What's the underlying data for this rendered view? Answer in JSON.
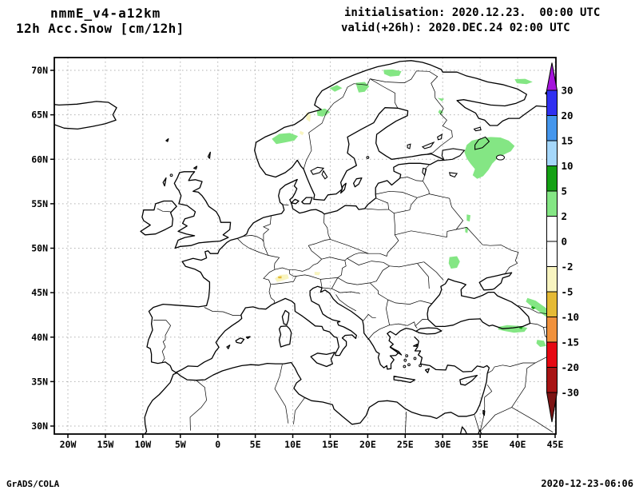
{
  "header": {
    "model": "nmmE_v4-a12km",
    "field": "12h Acc.Snow [cm/12h]",
    "initialisation": "initialisation: 2020.12.23.  00:00 UTC",
    "valid": "valid(+26h): 2020.DEC.24 02:00 UTC"
  },
  "footer": {
    "credit": "GrADS/COLA",
    "generated": "2020-12-23-06:06"
  },
  "map": {
    "projection": "latlon",
    "lon_ticks": [
      "20W",
      "15W",
      "10W",
      "5W",
      "0",
      "5E",
      "10E",
      "15E",
      "20E",
      "25E",
      "30E",
      "35E",
      "40E",
      "45E"
    ],
    "lon_values": [
      -20,
      -15,
      -10,
      -5,
      0,
      5,
      10,
      15,
      20,
      25,
      30,
      35,
      40,
      45
    ],
    "lat_ticks": [
      "70N",
      "65N",
      "60N",
      "55N",
      "50N",
      "45N",
      "40N",
      "35N",
      "30N"
    ],
    "lat_values": [
      70,
      65,
      60,
      55,
      50,
      45,
      40,
      35,
      30
    ],
    "grid": "dotted"
  },
  "colorbar": {
    "unit": "cm/12h",
    "levels": [
      "30",
      "20",
      "15",
      "10",
      "5",
      "2",
      "0",
      "-2",
      "-5",
      "-10",
      "-15",
      "-20",
      "-30"
    ],
    "segment_colors": [
      "#3030f0",
      "#4596ec",
      "#a5d7fa",
      "#14a014",
      "#84e684",
      "#ffffff",
      "#ffffff",
      "#f8f4c0",
      "#e5ba35",
      "#f0913c",
      "#e60812",
      "#a81414"
    ],
    "above_color": "#a514dc",
    "below_color": "#7d1414",
    "band_colors": {
      "2": "#84e684",
      "5": "#14a014",
      "-2": "#f8f4c0",
      "-5": "#e5ba35"
    }
  },
  "snow_patches": [
    {
      "level": "2",
      "region": "south-norway-mountains",
      "pts": [
        [
          7.2,
          62.3
        ],
        [
          8.2,
          62.85
        ],
        [
          9.6,
          62.95
        ],
        [
          10.7,
          62.6
        ],
        [
          10.2,
          62.1
        ],
        [
          9.0,
          61.9
        ],
        [
          7.8,
          61.7
        ],
        [
          7.2,
          62.3
        ]
      ]
    },
    {
      "level": "2",
      "region": "trondelag",
      "pts": [
        [
          13.2,
          65.5
        ],
        [
          14.3,
          65.7
        ],
        [
          15.0,
          65.3
        ],
        [
          14.0,
          64.8
        ],
        [
          13.3,
          64.9
        ],
        [
          13.2,
          65.5
        ]
      ]
    },
    {
      "level": "2",
      "region": "nordland-coast",
      "pts": [
        [
          14.9,
          68.0
        ],
        [
          15.9,
          68.35
        ],
        [
          16.6,
          68.0
        ],
        [
          15.6,
          67.6
        ],
        [
          14.9,
          68.0
        ]
      ]
    },
    {
      "level": "2",
      "region": "north-sweden",
      "pts": [
        [
          18.4,
          68.6
        ],
        [
          19.6,
          68.7
        ],
        [
          20.2,
          68.2
        ],
        [
          19.6,
          67.6
        ],
        [
          18.8,
          67.5
        ],
        [
          18.6,
          68.0
        ],
        [
          18.4,
          68.6
        ]
      ]
    },
    {
      "level": "2",
      "region": "finnmark",
      "pts": [
        [
          22.1,
          70.05
        ],
        [
          23.3,
          70.1
        ],
        [
          24.5,
          69.9
        ],
        [
          24.2,
          69.4
        ],
        [
          23.0,
          69.3
        ],
        [
          22.2,
          69.6
        ],
        [
          22.1,
          70.05
        ]
      ]
    },
    {
      "level": "2",
      "region": "kola",
      "pts": [
        [
          39.6,
          69.0
        ],
        [
          41.0,
          69.05
        ],
        [
          42.0,
          68.7
        ],
        [
          41.2,
          68.45
        ],
        [
          39.9,
          68.55
        ],
        [
          39.6,
          69.0
        ]
      ]
    },
    {
      "level": "2",
      "region": "kuusamo",
      "pts": [
        [
          29.3,
          66.9
        ],
        [
          30.2,
          66.8
        ],
        [
          29.9,
          66.5
        ],
        [
          29.3,
          66.9
        ]
      ]
    },
    {
      "level": "2",
      "region": "kainuu",
      "pts": [
        [
          29.6,
          65.6
        ],
        [
          30.1,
          65.3
        ],
        [
          29.7,
          65.0
        ],
        [
          29.4,
          65.3
        ],
        [
          29.6,
          65.6
        ]
      ]
    },
    {
      "level": "2",
      "region": "nw-russia-large",
      "pts": [
        [
          33.2,
          61.6
        ],
        [
          33.9,
          62.1
        ],
        [
          35.1,
          62.35
        ],
        [
          36.4,
          62.5
        ],
        [
          37.7,
          62.45
        ],
        [
          38.8,
          62.1
        ],
        [
          39.6,
          61.5
        ],
        [
          39.1,
          60.9
        ],
        [
          38.1,
          60.5
        ],
        [
          37.3,
          60.1
        ],
        [
          36.6,
          59.5
        ],
        [
          36.1,
          58.8
        ],
        [
          35.4,
          58.1
        ],
        [
          34.6,
          57.8
        ],
        [
          34.0,
          58.2
        ],
        [
          34.3,
          58.9
        ],
        [
          33.7,
          59.5
        ],
        [
          33.2,
          60.1
        ],
        [
          32.9,
          60.8
        ],
        [
          33.2,
          61.6
        ]
      ]
    },
    {
      "level": "2",
      "region": "bryansk-1",
      "pts": [
        [
          33.2,
          53.8
        ],
        [
          33.7,
          53.7
        ],
        [
          33.6,
          53.0
        ],
        [
          33.2,
          53.1
        ],
        [
          33.2,
          53.8
        ]
      ]
    },
    {
      "level": "2",
      "region": "bryansk-2",
      "pts": [
        [
          33.0,
          52.4
        ],
        [
          33.4,
          52.3
        ],
        [
          33.3,
          51.7
        ],
        [
          33.0,
          51.8
        ],
        [
          33.0,
          52.4
        ]
      ]
    },
    {
      "level": "2",
      "region": "central-ukraine",
      "pts": [
        [
          30.9,
          49.0
        ],
        [
          31.9,
          49.1
        ],
        [
          32.3,
          48.5
        ],
        [
          31.9,
          47.8
        ],
        [
          31.1,
          47.7
        ],
        [
          30.8,
          48.3
        ],
        [
          30.9,
          49.0
        ]
      ]
    },
    {
      "level": "2",
      "region": "caucasus-ridge",
      "pts": [
        [
          41.3,
          44.4
        ],
        [
          42.4,
          44.1
        ],
        [
          43.4,
          43.5
        ],
        [
          44.4,
          42.9
        ],
        [
          44.7,
          42.2
        ],
        [
          43.8,
          42.3
        ],
        [
          42.8,
          42.9
        ],
        [
          41.8,
          43.5
        ],
        [
          41.1,
          44.0
        ],
        [
          41.3,
          44.4
        ]
      ]
    },
    {
      "level": "2",
      "region": "pontic-mts",
      "pts": [
        [
          37.4,
          41.15
        ],
        [
          38.6,
          41.35
        ],
        [
          40.1,
          41.25
        ],
        [
          41.3,
          41.05
        ],
        [
          40.9,
          40.6
        ],
        [
          39.5,
          40.5
        ],
        [
          38.2,
          40.7
        ],
        [
          37.4,
          40.85
        ],
        [
          37.4,
          41.15
        ]
      ]
    },
    {
      "level": "2",
      "region": "ararat",
      "pts": [
        [
          42.6,
          39.7
        ],
        [
          43.5,
          39.6
        ],
        [
          43.8,
          39.0
        ],
        [
          43.0,
          38.9
        ],
        [
          42.5,
          39.3
        ],
        [
          42.6,
          39.7
        ]
      ]
    },
    {
      "level": "5",
      "region": "caucasus-core",
      "pts": [
        [
          41.9,
          43.5
        ],
        [
          42.4,
          43.3
        ],
        [
          42.1,
          43.1
        ],
        [
          41.8,
          43.3
        ],
        [
          41.9,
          43.5
        ]
      ]
    },
    {
      "level": "5",
      "region": "pontic-core",
      "pts": [
        [
          40.3,
          41.2
        ],
        [
          40.7,
          41.1
        ],
        [
          40.5,
          40.9
        ],
        [
          40.2,
          41.0
        ],
        [
          40.3,
          41.2
        ]
      ]
    },
    {
      "level": "-2",
      "region": "swiss-alps",
      "pts": [
        [
          7.6,
          46.6
        ],
        [
          8.3,
          47.0
        ],
        [
          9.3,
          47.05
        ],
        [
          9.5,
          46.6
        ],
        [
          8.6,
          46.35
        ],
        [
          7.9,
          46.2
        ],
        [
          7.6,
          46.6
        ]
      ]
    },
    {
      "level": "-2",
      "region": "austrian-alps",
      "pts": [
        [
          12.9,
          47.35
        ],
        [
          13.7,
          47.3
        ],
        [
          13.5,
          46.95
        ],
        [
          12.9,
          47.0
        ],
        [
          12.9,
          47.35
        ]
      ]
    },
    {
      "level": "-2",
      "region": "norway-border-1",
      "pts": [
        [
          11.8,
          65.3
        ],
        [
          12.4,
          65.0
        ],
        [
          12.3,
          64.2
        ],
        [
          11.8,
          64.5
        ],
        [
          11.8,
          65.3
        ]
      ]
    },
    {
      "level": "-2",
      "region": "norway-border-2",
      "pts": [
        [
          11.0,
          63.2
        ],
        [
          11.5,
          63.0
        ],
        [
          11.3,
          62.7
        ],
        [
          10.9,
          62.9
        ],
        [
          11.0,
          63.2
        ]
      ]
    },
    {
      "level": "-5",
      "region": "alps-core",
      "pts": [
        [
          8.0,
          46.8
        ],
        [
          8.5,
          46.85
        ],
        [
          8.5,
          46.6
        ],
        [
          8.1,
          46.6
        ],
        [
          8.0,
          46.8
        ]
      ]
    }
  ]
}
